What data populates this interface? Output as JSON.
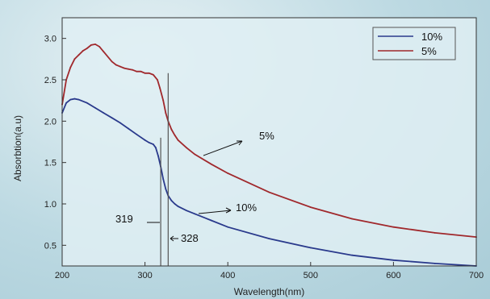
{
  "chart_data": {
    "type": "line",
    "xlabel": "Wavelength(nm)",
    "ylabel": "Absorbtion(a.u)",
    "xlim": [
      200,
      700
    ],
    "ylim": [
      0.25,
      3.25
    ],
    "xticks": [
      200,
      300,
      400,
      500,
      600,
      700
    ],
    "yticks": [
      0.5,
      1.0,
      1.5,
      2.0,
      2.5,
      3.0
    ],
    "xtick_labels": [
      "200",
      "300",
      "400",
      "500",
      "600",
      "700"
    ],
    "ytick_labels": [
      "0.5",
      "1.0",
      "1.5",
      "2.0",
      "2.5",
      "3.0"
    ],
    "grid": false,
    "legend_position": "top-right",
    "series": [
      {
        "name": "10%",
        "color": "#2a3a8c",
        "x": [
          200,
          205,
          210,
          215,
          220,
          230,
          240,
          250,
          260,
          270,
          280,
          290,
          300,
          305,
          310,
          313,
          316,
          319,
          322,
          325,
          328,
          332,
          336,
          340,
          350,
          360,
          380,
          400,
          450,
          500,
          550,
          600,
          650,
          700
        ],
        "y": [
          2.1,
          2.22,
          2.26,
          2.27,
          2.26,
          2.22,
          2.16,
          2.1,
          2.04,
          1.98,
          1.91,
          1.84,
          1.77,
          1.74,
          1.72,
          1.68,
          1.58,
          1.45,
          1.3,
          1.18,
          1.1,
          1.04,
          1.0,
          0.97,
          0.92,
          0.88,
          0.8,
          0.72,
          0.58,
          0.47,
          0.38,
          0.32,
          0.28,
          0.25
        ]
      },
      {
        "name": "5%",
        "color": "#a0282c",
        "x": [
          200,
          205,
          210,
          215,
          220,
          225,
          230,
          235,
          240,
          245,
          250,
          260,
          265,
          270,
          275,
          280,
          285,
          290,
          295,
          300,
          305,
          310,
          315,
          318,
          322,
          325,
          328,
          332,
          336,
          340,
          350,
          360,
          380,
          400,
          450,
          500,
          550,
          600,
          650,
          700
        ],
        "y": [
          2.2,
          2.5,
          2.65,
          2.75,
          2.8,
          2.85,
          2.88,
          2.92,
          2.93,
          2.9,
          2.84,
          2.72,
          2.68,
          2.66,
          2.64,
          2.63,
          2.62,
          2.6,
          2.6,
          2.58,
          2.58,
          2.56,
          2.5,
          2.4,
          2.25,
          2.1,
          2.0,
          1.9,
          1.83,
          1.77,
          1.68,
          1.6,
          1.48,
          1.37,
          1.14,
          0.96,
          0.82,
          0.72,
          0.65,
          0.6
        ]
      }
    ],
    "annotations": {
      "label_5": "5%",
      "label_10": "10%",
      "label_319": "319",
      "label_328": "328",
      "markers": [
        {
          "x": 319,
          "y_from": 0.25,
          "y_to": 1.8
        },
        {
          "x": 328,
          "y_from": 0.25,
          "y_to": 2.58
        }
      ]
    }
  }
}
